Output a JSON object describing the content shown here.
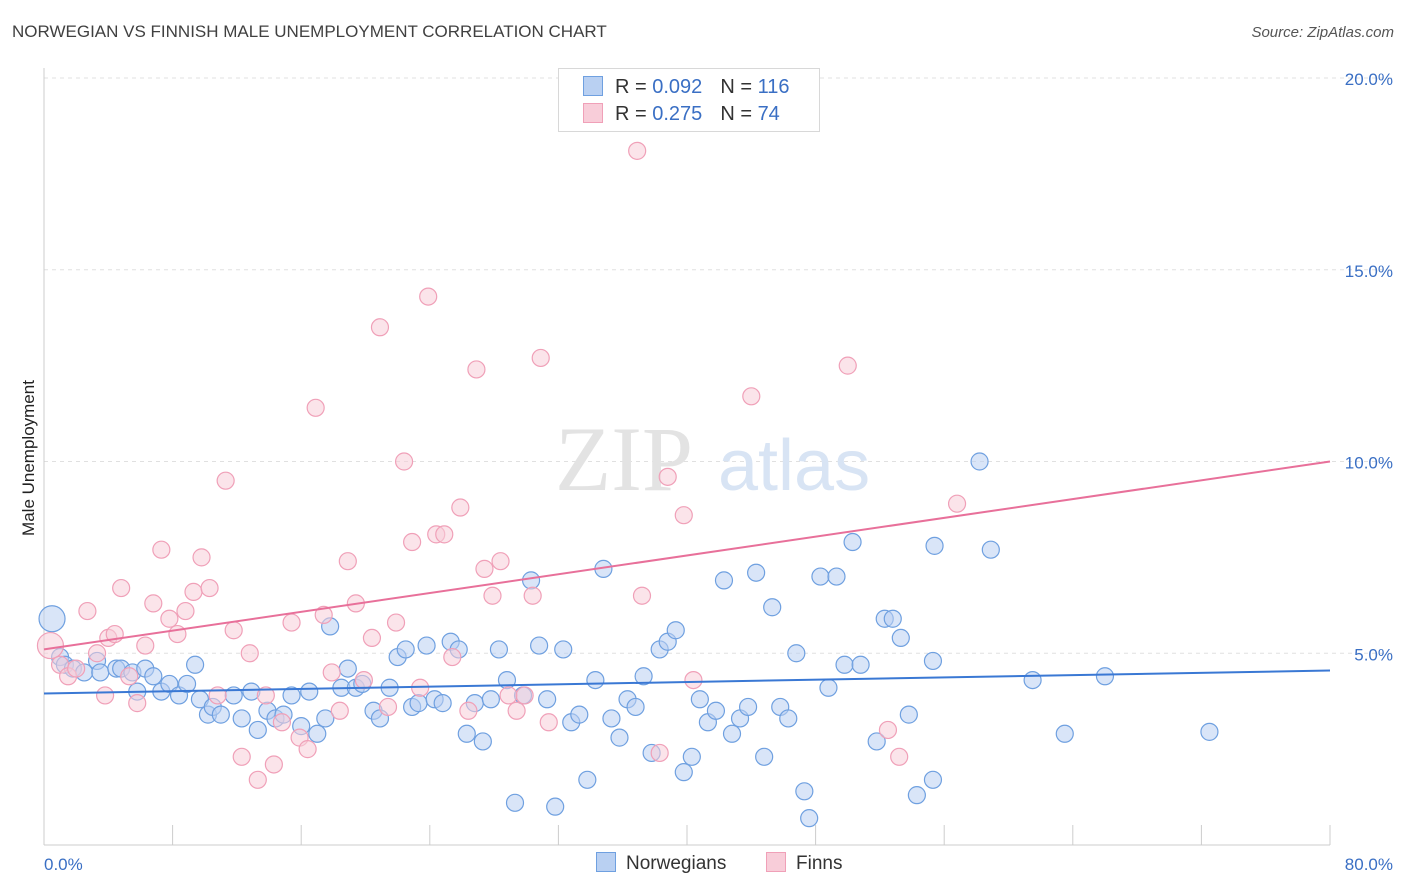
{
  "title": "NORWEGIAN VS FINNISH MALE UNEMPLOYMENT CORRELATION CHART",
  "source": "Source: ZipAtlas.com",
  "legend": {
    "rows": [
      {
        "r_label": "R =",
        "r_value": "0.092",
        "n_label": "N =",
        "n_value": "116"
      },
      {
        "r_label": "R =",
        "r_value": "0.275",
        "n_label": "N =",
        "n_value": "74"
      }
    ]
  },
  "bottom_legend": {
    "norwegians": "Norwegians",
    "finns": "Finns"
  },
  "watermark": {
    "zip": "ZIP",
    "atlas": "atlas"
  },
  "colors": {
    "blue": "#6fa0e0",
    "blue_fill": "#b9d0f2",
    "pink": "#f0a0b8",
    "pink_fill": "#f8cdd9",
    "blue_line": "#3a78d4",
    "pink_line": "#e8709a"
  },
  "chart_data": {
    "type": "scatter",
    "title": "NORWEGIAN VS FINNISH MALE UNEMPLOYMENT CORRELATION CHART",
    "xlabel": "",
    "ylabel": "Male Unemployment",
    "xlim": [
      0,
      80
    ],
    "ylim": [
      0,
      20
    ],
    "x_tick_labels": [
      "0.0%",
      "80.0%"
    ],
    "y_ticks": [
      5,
      10,
      15,
      20
    ],
    "y_tick_labels": [
      "5.0%",
      "10.0%",
      "15.0%",
      "20.0%"
    ],
    "series": [
      {
        "name": "Norwegians",
        "trend": {
          "x0": 0,
          "y0": 3.95,
          "x1": 80,
          "y1": 4.55
        },
        "points": [
          [
            0.5,
            5.9
          ],
          [
            1,
            4.9
          ],
          [
            1.3,
            4.7
          ],
          [
            1.8,
            4.6
          ],
          [
            2.5,
            4.5
          ],
          [
            3.3,
            4.8
          ],
          [
            3.5,
            4.5
          ],
          [
            4.5,
            4.6
          ],
          [
            4.8,
            4.6
          ],
          [
            5.5,
            4.5
          ],
          [
            5.8,
            4.0
          ],
          [
            6.3,
            4.6
          ],
          [
            6.8,
            4.4
          ],
          [
            7.3,
            4.0
          ],
          [
            7.8,
            4.2
          ],
          [
            8.4,
            3.9
          ],
          [
            8.9,
            4.2
          ],
          [
            9.4,
            4.7
          ],
          [
            9.7,
            3.8
          ],
          [
            10.2,
            3.4
          ],
          [
            10.5,
            3.6
          ],
          [
            11,
            3.4
          ],
          [
            11.8,
            3.9
          ],
          [
            12.3,
            3.3
          ],
          [
            12.9,
            4.0
          ],
          [
            13.3,
            3.0
          ],
          [
            13.9,
            3.5
          ],
          [
            14.4,
            3.3
          ],
          [
            14.9,
            3.4
          ],
          [
            15.4,
            3.9
          ],
          [
            16.0,
            3.1
          ],
          [
            16.5,
            4.0
          ],
          [
            17.0,
            2.9
          ],
          [
            17.5,
            3.3
          ],
          [
            17.8,
            5.7
          ],
          [
            18.5,
            4.1
          ],
          [
            18.9,
            4.6
          ],
          [
            19.4,
            4.1
          ],
          [
            19.8,
            4.2
          ],
          [
            20.5,
            3.5
          ],
          [
            20.9,
            3.3
          ],
          [
            21.5,
            4.1
          ],
          [
            22.0,
            4.9
          ],
          [
            22.5,
            5.1
          ],
          [
            22.9,
            3.6
          ],
          [
            23.3,
            3.7
          ],
          [
            23.8,
            5.2
          ],
          [
            24.3,
            3.8
          ],
          [
            24.8,
            3.7
          ],
          [
            25.3,
            5.3
          ],
          [
            25.8,
            5.1
          ],
          [
            26.3,
            2.9
          ],
          [
            26.8,
            3.7
          ],
          [
            27.3,
            2.7
          ],
          [
            27.8,
            3.8
          ],
          [
            28.3,
            5.1
          ],
          [
            28.8,
            4.3
          ],
          [
            29.3,
            1.1
          ],
          [
            29.8,
            3.9
          ],
          [
            30.3,
            6.9
          ],
          [
            30.8,
            5.2
          ],
          [
            31.3,
            3.8
          ],
          [
            31.8,
            1.0
          ],
          [
            32.3,
            5.1
          ],
          [
            32.8,
            3.2
          ],
          [
            33.3,
            3.4
          ],
          [
            33.8,
            1.7
          ],
          [
            34.3,
            4.3
          ],
          [
            34.8,
            7.2
          ],
          [
            35.3,
            3.3
          ],
          [
            35.8,
            2.8
          ],
          [
            36.3,
            3.8
          ],
          [
            36.8,
            3.6
          ],
          [
            37.3,
            4.4
          ],
          [
            37.8,
            2.4
          ],
          [
            38.3,
            5.1
          ],
          [
            38.8,
            5.3
          ],
          [
            39.3,
            5.6
          ],
          [
            39.8,
            1.9
          ],
          [
            40.3,
            2.3
          ],
          [
            40.8,
            3.8
          ],
          [
            41.3,
            3.2
          ],
          [
            41.8,
            3.5
          ],
          [
            42.3,
            6.9
          ],
          [
            42.8,
            2.9
          ],
          [
            43.3,
            3.3
          ],
          [
            43.8,
            3.6
          ],
          [
            44.3,
            7.1
          ],
          [
            44.8,
            2.3
          ],
          [
            45.3,
            6.2
          ],
          [
            45.8,
            3.6
          ],
          [
            46.3,
            3.3
          ],
          [
            46.8,
            5.0
          ],
          [
            47.3,
            1.4
          ],
          [
            47.6,
            0.7
          ],
          [
            48.3,
            7.0
          ],
          [
            48.8,
            4.1
          ],
          [
            49.3,
            7.0
          ],
          [
            49.8,
            4.7
          ],
          [
            50.3,
            7.9
          ],
          [
            50.8,
            4.7
          ],
          [
            51.8,
            2.7
          ],
          [
            52.3,
            5.9
          ],
          [
            52.8,
            5.9
          ],
          [
            53.3,
            5.4
          ],
          [
            53.8,
            3.4
          ],
          [
            54.3,
            1.3
          ],
          [
            55.3,
            4.8
          ],
          [
            55.3,
            1.7
          ],
          [
            55.4,
            7.8
          ],
          [
            58.2,
            10.0
          ],
          [
            58.9,
            7.7
          ],
          [
            61.5,
            4.3
          ],
          [
            63.5,
            2.9
          ],
          [
            66,
            4.4
          ],
          [
            72.5,
            2.95
          ]
        ]
      },
      {
        "name": "Finns",
        "trend": {
          "x0": 0,
          "y0": 5.1,
          "x1": 80,
          "y1": 10.0
        },
        "points": [
          [
            0.4,
            5.2
          ],
          [
            1.0,
            4.7
          ],
          [
            1.5,
            4.4
          ],
          [
            2.0,
            4.6
          ],
          [
            2.7,
            6.1
          ],
          [
            3.3,
            5.0
          ],
          [
            3.8,
            3.9
          ],
          [
            4.0,
            5.4
          ],
          [
            4.4,
            5.5
          ],
          [
            4.8,
            6.7
          ],
          [
            5.3,
            4.4
          ],
          [
            5.8,
            3.7
          ],
          [
            6.3,
            5.2
          ],
          [
            6.8,
            6.3
          ],
          [
            7.3,
            7.7
          ],
          [
            7.8,
            5.9
          ],
          [
            8.3,
            5.5
          ],
          [
            8.8,
            6.1
          ],
          [
            9.3,
            6.6
          ],
          [
            9.8,
            7.5
          ],
          [
            10.3,
            6.7
          ],
          [
            10.8,
            3.9
          ],
          [
            11.3,
            9.5
          ],
          [
            11.8,
            5.6
          ],
          [
            12.3,
            2.3
          ],
          [
            12.8,
            5.0
          ],
          [
            13.3,
            1.7
          ],
          [
            13.8,
            3.9
          ],
          [
            14.3,
            2.1
          ],
          [
            14.8,
            3.2
          ],
          [
            15.4,
            5.8
          ],
          [
            15.9,
            2.8
          ],
          [
            16.4,
            2.5
          ],
          [
            16.9,
            11.4
          ],
          [
            17.4,
            6.0
          ],
          [
            17.9,
            4.5
          ],
          [
            18.4,
            3.5
          ],
          [
            18.9,
            7.4
          ],
          [
            19.4,
            6.3
          ],
          [
            19.9,
            4.3
          ],
          [
            20.4,
            5.4
          ],
          [
            20.9,
            13.5
          ],
          [
            21.4,
            3.6
          ],
          [
            21.9,
            5.8
          ],
          [
            22.4,
            10.0
          ],
          [
            22.9,
            7.9
          ],
          [
            23.4,
            4.1
          ],
          [
            23.9,
            14.3
          ],
          [
            24.4,
            8.1
          ],
          [
            24.9,
            8.1
          ],
          [
            25.4,
            4.9
          ],
          [
            25.9,
            8.8
          ],
          [
            26.4,
            3.5
          ],
          [
            26.9,
            12.4
          ],
          [
            27.4,
            7.2
          ],
          [
            27.9,
            6.5
          ],
          [
            28.4,
            7.4
          ],
          [
            28.9,
            3.9
          ],
          [
            29.4,
            3.5
          ],
          [
            29.9,
            3.9
          ],
          [
            30.4,
            6.5
          ],
          [
            30.9,
            12.7
          ],
          [
            31.4,
            3.2
          ],
          [
            36.9,
            18.1
          ],
          [
            37.2,
            6.5
          ],
          [
            38.3,
            2.4
          ],
          [
            38.8,
            9.6
          ],
          [
            39.8,
            8.6
          ],
          [
            40.4,
            4.3
          ],
          [
            44.0,
            11.7
          ],
          [
            50.0,
            12.5
          ],
          [
            52.5,
            3.0
          ],
          [
            53.2,
            2.3
          ],
          [
            56.8,
            8.9
          ]
        ]
      }
    ]
  }
}
